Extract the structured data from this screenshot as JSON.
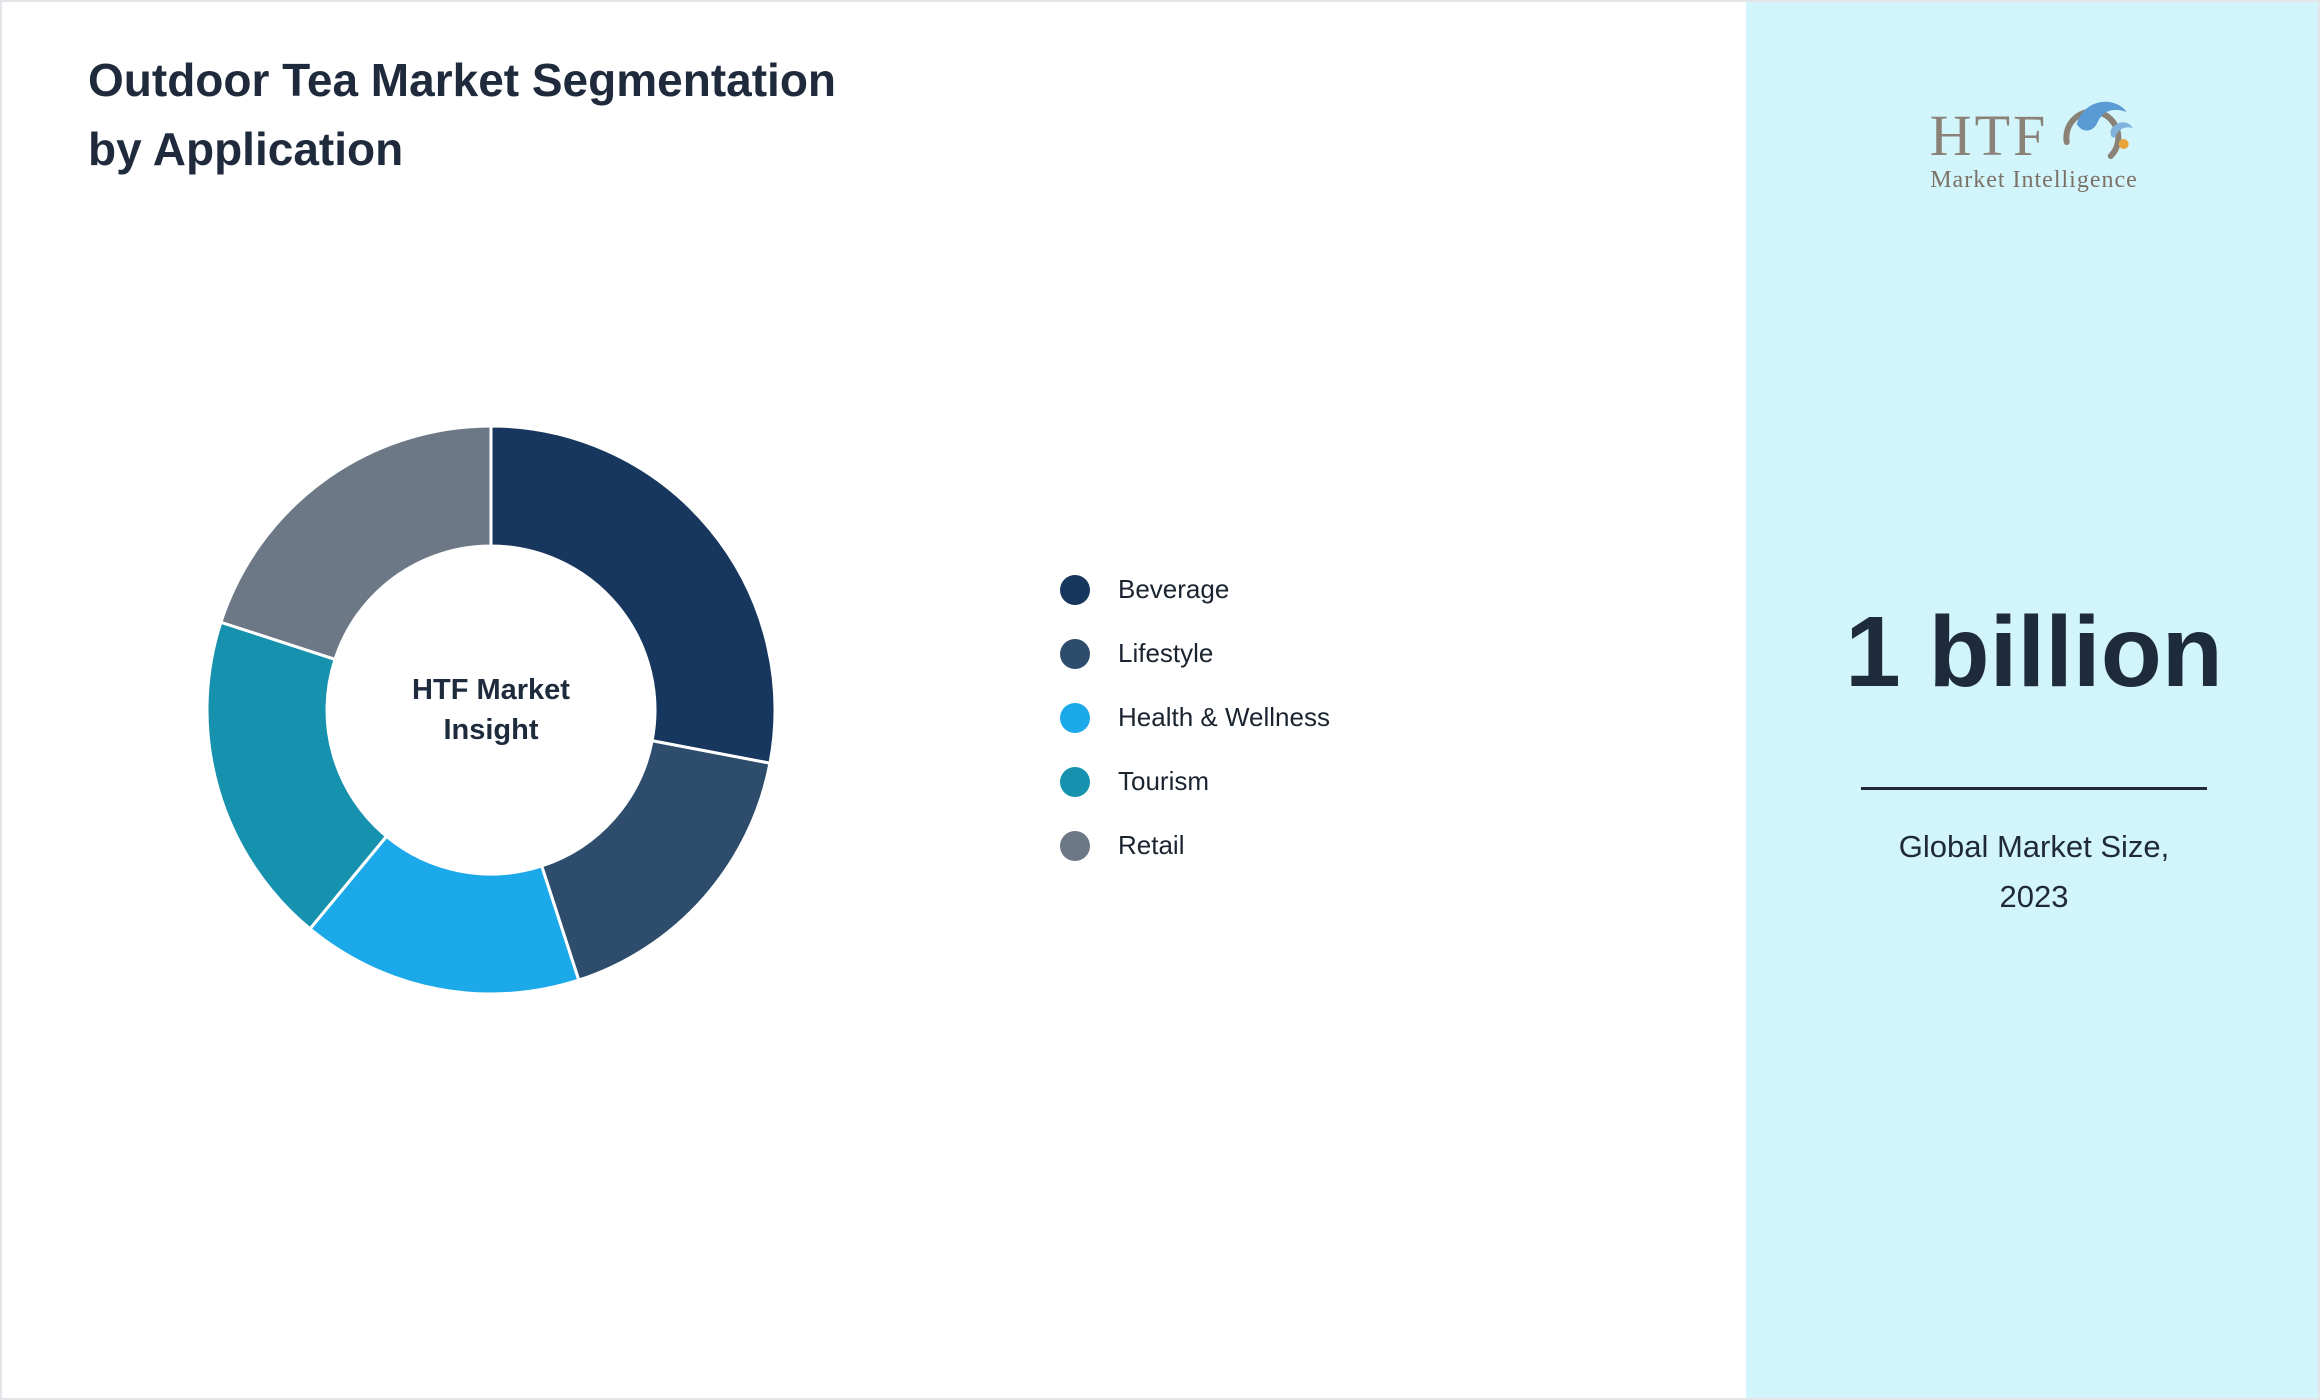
{
  "title": {
    "line1": "Outdoor Tea Market Segmentation",
    "line2": "by Application"
  },
  "chart_data": {
    "type": "pie",
    "donut": true,
    "title": "Outdoor Tea Market Segmentation by Application",
    "categories": [
      "Beverage",
      "Lifestyle",
      "Health & Wellness",
      "Tourism",
      "Retail"
    ],
    "values": [
      28,
      17,
      16,
      19,
      20
    ],
    "values_are_estimates_from_arc_angles": true,
    "colors": [
      "#17375e",
      "#2e4d6d",
      "#1ca9ea",
      "#1692ae",
      "#6c7886"
    ],
    "legend_position": "right",
    "center_label_lines": {
      "line1": "HTF Market",
      "line2": "Insight"
    },
    "start_angle_deg": -90,
    "direction": "clockwise"
  },
  "sidebar": {
    "background": "#d2f5fb",
    "logo_text": "HTF",
    "logo_subtext": "Market Intelligence",
    "market_value": "1 billion",
    "caption_line1": "Global Market Size,",
    "caption_line2": "2023"
  }
}
